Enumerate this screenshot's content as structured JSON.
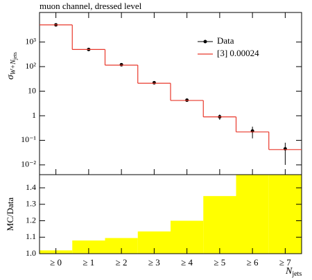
{
  "chart_data": [
    {
      "type": "step",
      "title": "muon channel, dressed level",
      "ylabel": {
        "symbol": "σ",
        "subscript": "W+N",
        "subsubscript": "jets"
      },
      "categories": [
        "≥ 0",
        "≥ 1",
        "≥ 2",
        "≥ 3",
        "≥ 4",
        "≥ 5",
        "≥ 6",
        "≥ 7"
      ],
      "log_y": true,
      "ylim": [
        0.004,
        16000
      ],
      "yticks": [
        {
          "value": 0.01,
          "label": "10⁻²"
        },
        {
          "value": 0.1,
          "label": "10⁻¹"
        },
        1,
        10,
        {
          "value": 100,
          "label": "10²"
        },
        {
          "value": 1000,
          "label": "10³"
        }
      ],
      "legend": "upper right",
      "series": [
        {
          "name": "Data",
          "color": "#000000",
          "values": [
            5000,
            500,
            120,
            22,
            4.3,
            0.9,
            0.24,
            0.045
          ],
          "errors": [
            150,
            15,
            4,
            1,
            0.4,
            0.22,
            0.12,
            0.035
          ]
        },
        {
          "name": "[3] 0.00024",
          "color": "#e8372a",
          "values": [
            5000,
            500,
            115,
            21,
            4.2,
            0.9,
            0.22,
            0.042
          ]
        }
      ]
    },
    {
      "type": "bar",
      "ylabel": "MC/Data",
      "xlabel": {
        "symbol": "N",
        "subscript": "jets"
      },
      "color": "#ffff00",
      "ylim": [
        1.0,
        1.48
      ],
      "yticks": [
        {
          "value": 1.0,
          "label": "1.0"
        },
        1.1,
        1.2,
        1.3,
        1.4
      ],
      "values": [
        1.02,
        1.08,
        1.095,
        1.135,
        1.2,
        1.35,
        1.5,
        1.5
      ]
    }
  ]
}
